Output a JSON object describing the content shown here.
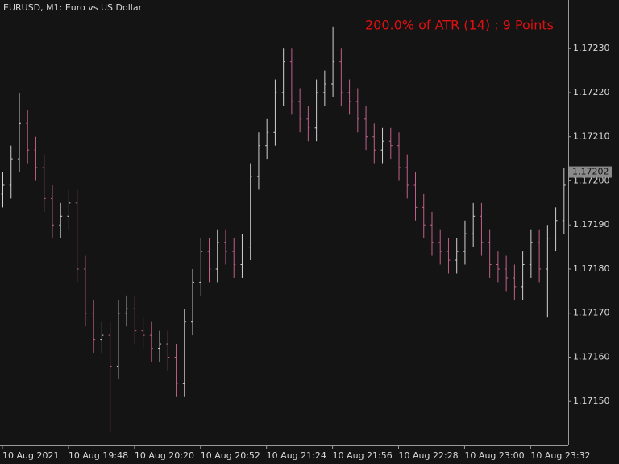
{
  "chart_data": {
    "type": "ohlc",
    "title": "EURUSD, M1:  Euro vs US Dollar",
    "annotation": "200.0% of ATR (14) : 9 Points",
    "annotation_color": "#e01010",
    "up_color": "#d0d0d0",
    "down_color": "#c0608a",
    "open": [
      1.17197,
      1.17199,
      1.17205,
      1.17213,
      1.17207,
      1.17203,
      1.17196,
      1.1719,
      1.17192,
      1.17195,
      1.1718,
      1.1717,
      1.17164,
      1.17165,
      1.17158,
      1.1717,
      1.17171,
      1.17166,
      1.17165,
      1.17162,
      1.17163,
      1.1716,
      1.17154,
      1.17168,
      1.17177,
      1.17184,
      1.1718,
      1.17186,
      1.17184,
      1.17181,
      1.17185,
      1.17201,
      1.17208,
      1.17211,
      1.1722,
      1.17227,
      1.17218,
      1.17214,
      1.17212,
      1.1722,
      1.17222,
      1.17227,
      1.1722,
      1.17218,
      1.17214,
      1.1721,
      1.17207,
      1.17209,
      1.17208,
      1.17203,
      1.17199,
      1.17194,
      1.1719,
      1.17186,
      1.17184,
      1.17182,
      1.17184,
      1.17188,
      1.17192,
      1.17186,
      1.17181,
      1.1718,
      1.17178,
      1.17176,
      1.17181,
      1.17186,
      1.1718,
      1.17187,
      1.17191
    ],
    "high": [
      1.17202,
      1.17208,
      1.1722,
      1.17216,
      1.1721,
      1.17206,
      1.17199,
      1.17195,
      1.17198,
      1.17198,
      1.17183,
      1.17173,
      1.17168,
      1.17168,
      1.17173,
      1.17174,
      1.17174,
      1.17169,
      1.17168,
      1.17166,
      1.17166,
      1.17163,
      1.17171,
      1.1718,
      1.17187,
      1.17187,
      1.17189,
      1.17189,
      1.17187,
      1.17188,
      1.17204,
      1.17211,
      1.17214,
      1.17223,
      1.1723,
      1.1723,
      1.17221,
      1.17217,
      1.17223,
      1.17225,
      1.17235,
      1.1723,
      1.17223,
      1.17221,
      1.17217,
      1.17213,
      1.17212,
      1.17212,
      1.17211,
      1.17206,
      1.17202,
      1.17197,
      1.17193,
      1.17189,
      1.17187,
      1.17187,
      1.17191,
      1.17195,
      1.17195,
      1.17189,
      1.17184,
      1.17183,
      1.17181,
      1.17184,
      1.17189,
      1.17189,
      1.1719,
      1.17194,
      1.17203
    ],
    "low": [
      1.17194,
      1.17196,
      1.17202,
      1.17204,
      1.172,
      1.17193,
      1.17187,
      1.17187,
      1.17189,
      1.17177,
      1.17167,
      1.17161,
      1.17161,
      1.17143,
      1.17155,
      1.17167,
      1.17163,
      1.17162,
      1.17159,
      1.17159,
      1.17157,
      1.17151,
      1.17151,
      1.17165,
      1.17174,
      1.17177,
      1.17177,
      1.17181,
      1.17178,
      1.17178,
      1.17182,
      1.17198,
      1.17205,
      1.17208,
      1.17217,
      1.17215,
      1.17211,
      1.17209,
      1.17209,
      1.17217,
      1.17219,
      1.17217,
      1.17215,
      1.17211,
      1.17207,
      1.17204,
      1.17204,
      1.17205,
      1.172,
      1.17196,
      1.17191,
      1.17187,
      1.17183,
      1.17181,
      1.17179,
      1.17179,
      1.17181,
      1.17185,
      1.17183,
      1.17178,
      1.17177,
      1.17175,
      1.17173,
      1.17173,
      1.17178,
      1.17177,
      1.17169,
      1.17184,
      1.17188
    ],
    "close": [
      1.17199,
      1.17205,
      1.17213,
      1.17207,
      1.17203,
      1.17196,
      1.1719,
      1.17192,
      1.17195,
      1.1718,
      1.1717,
      1.17164,
      1.17165,
      1.17158,
      1.1717,
      1.17171,
      1.17166,
      1.17165,
      1.17162,
      1.17163,
      1.1716,
      1.17154,
      1.17168,
      1.17177,
      1.17184,
      1.1718,
      1.17186,
      1.17184,
      1.17181,
      1.17185,
      1.17201,
      1.17208,
      1.17211,
      1.1722,
      1.17227,
      1.17218,
      1.17214,
      1.17212,
      1.1722,
      1.17222,
      1.17227,
      1.1722,
      1.17218,
      1.17214,
      1.1721,
      1.17207,
      1.17209,
      1.17208,
      1.17203,
      1.17199,
      1.17194,
      1.1719,
      1.17186,
      1.17184,
      1.17182,
      1.17184,
      1.17188,
      1.17192,
      1.17186,
      1.17181,
      1.1718,
      1.17178,
      1.17176,
      1.17181,
      1.17186,
      1.1718,
      1.17187,
      1.17191,
      1.17199
    ],
    "ylim": [
      1.1714,
      1.17241
    ],
    "yticks": [
      {
        "value": 1.1715,
        "label": "1.17150"
      },
      {
        "value": 1.1716,
        "label": "1.17160"
      },
      {
        "value": 1.1717,
        "label": "1.17170"
      },
      {
        "value": 1.1718,
        "label": "1.17180"
      },
      {
        "value": 1.1719,
        "label": "1.17190"
      },
      {
        "value": 1.172,
        "label": "1.17200"
      },
      {
        "value": 1.1721,
        "label": "1.17210"
      },
      {
        "value": 1.1722,
        "label": "1.17220"
      },
      {
        "value": 1.1723,
        "label": "1.17230"
      }
    ],
    "xticks": [
      {
        "value": 0,
        "label": "10 Aug 2021"
      },
      {
        "value": 8,
        "label": "10 Aug 19:48"
      },
      {
        "value": 16,
        "label": "10 Aug 20:20"
      },
      {
        "value": 24,
        "label": "10 Aug 20:52"
      },
      {
        "value": 32,
        "label": "10 Aug 21:24"
      },
      {
        "value": 40,
        "label": "10 Aug 21:56"
      },
      {
        "value": 48,
        "label": "10 Aug 22:28"
      },
      {
        "value": 56,
        "label": "10 Aug 23:00"
      },
      {
        "value": 64,
        "label": "10 Aug 23:32"
      }
    ],
    "current_price": {
      "value": 1.17202,
      "label": "1.17202"
    }
  }
}
